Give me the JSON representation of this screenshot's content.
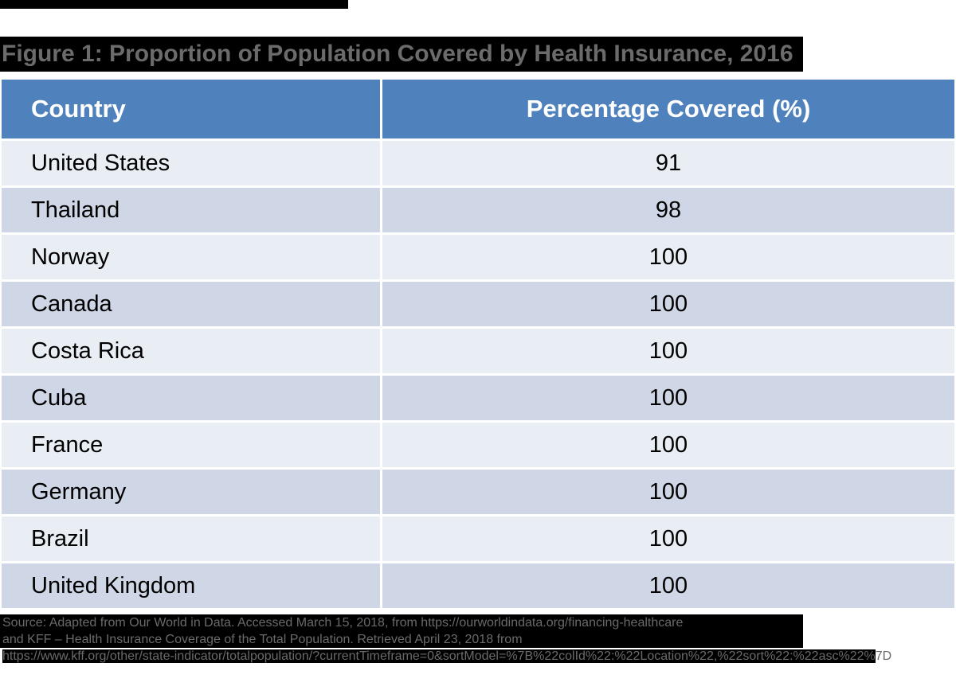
{
  "chart_data": {
    "type": "table",
    "title": "Figure 1: Proportion of Population Covered by Health Insurance, 2016",
    "columns": [
      "Country",
      "Percentage Covered (%)"
    ],
    "rows": [
      [
        "United States",
        "91"
      ],
      [
        "Thailand",
        "98"
      ],
      [
        "Norway",
        "100"
      ],
      [
        "Canada",
        "100"
      ],
      [
        "Costa Rica",
        "100"
      ],
      [
        "Cuba",
        "100"
      ],
      [
        "France",
        "100"
      ],
      [
        "Germany",
        "100"
      ],
      [
        "Brazil",
        "100"
      ],
      [
        "United Kingdom",
        "100"
      ]
    ],
    "layout_hints": {
      "header_position": "top",
      "banded_rows": true,
      "value_alignment": "center"
    }
  },
  "source_note": {
    "line1": "Source: Adapted from Our World in Data. Accessed March 15, 2018, from https://ourworldindata.org/financing-healthcare",
    "line2": "and KFF – Health Insurance Coverage of the Total Population. Retrieved April 23, 2018 from",
    "line3_highlighted": "https://www.kff.org/other/state-indicator/totalpopulation/?currentTimeframe=0&sortModel=%7B%22colId%22:%22Location%22,%22sort%22:%22asc%22%",
    "line3_tail": "7D"
  },
  "colors": {
    "header_bg": "#4f81bd",
    "header_text": "#ffffff",
    "row_band_light": "#e9edf4",
    "row_band_dark": "#cfd6e5",
    "title_text": "#6b6b6b",
    "highlight_bg": "#000000",
    "source_text": "#6a6a6a"
  }
}
